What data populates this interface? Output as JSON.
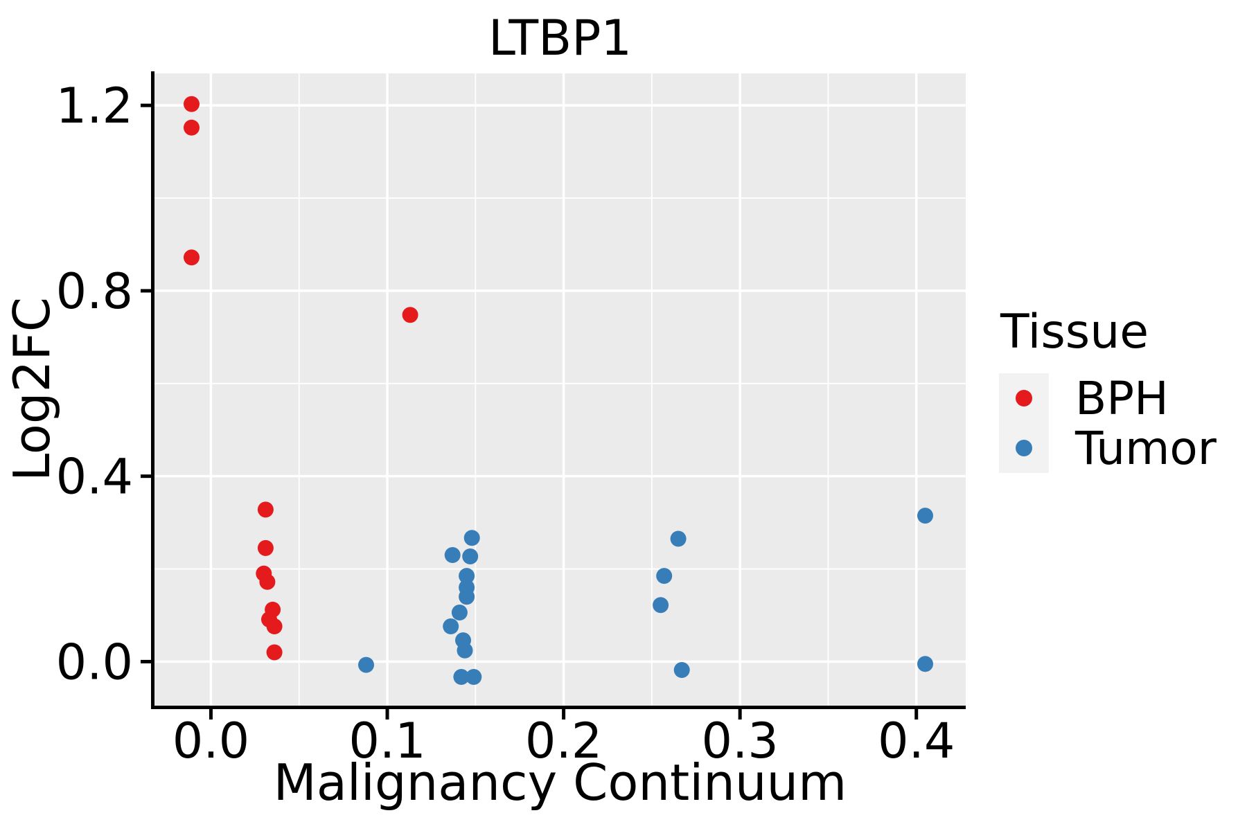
{
  "figure": {
    "title": "LTBP1",
    "legend": {
      "title": "Tissue",
      "items": [
        {
          "label": "BPH",
          "color": "#E41A1C"
        },
        {
          "label": "Tumor",
          "color": "#377EB8"
        }
      ]
    }
  },
  "chart_data": {
    "type": "scatter",
    "title": "LTBP1",
    "xlabel": "Malignancy Continuum",
    "ylabel": "Log2FC",
    "xlim": [
      -0.032,
      0.428
    ],
    "ylim": [
      -0.095,
      1.269
    ],
    "x_ticks": {
      "values": [
        0.0,
        0.1,
        0.2,
        0.3,
        0.4
      ],
      "labels": [
        "0.0",
        "0.1",
        "0.2",
        "0.3",
        "0.4"
      ]
    },
    "y_ticks": {
      "values": [
        0.0,
        0.4,
        0.8,
        1.2
      ],
      "labels": [
        "0.0",
        "0.4",
        "0.8",
        "1.2"
      ]
    },
    "x_minor_gridlines": [
      0.05,
      0.15,
      0.25,
      0.35
    ],
    "y_minor_gridlines": [
      0.2,
      0.6,
      1.0
    ],
    "grid": "on",
    "panel_background": "#EBEBEB",
    "gridline_color": "#FFFFFF",
    "axis_color": "#000000",
    "legend_position": "right",
    "series": [
      {
        "name": "BPH",
        "color": "#E41A1C",
        "points": [
          [
            -0.011,
            1.203
          ],
          [
            -0.011,
            1.152
          ],
          [
            -0.011,
            0.872
          ],
          [
            0.113,
            0.748
          ],
          [
            0.031,
            0.328
          ],
          [
            0.031,
            0.245
          ],
          [
            0.03,
            0.19
          ],
          [
            0.032,
            0.172
          ],
          [
            0.035,
            0.112
          ],
          [
            0.033,
            0.091
          ],
          [
            0.036,
            0.076
          ],
          [
            0.036,
            0.02
          ]
        ]
      },
      {
        "name": "Tumor",
        "color": "#377EB8",
        "points": [
          [
            0.088,
            -0.007
          ],
          [
            0.148,
            0.267
          ],
          [
            0.137,
            0.23
          ],
          [
            0.147,
            0.227
          ],
          [
            0.145,
            0.185
          ],
          [
            0.145,
            0.16
          ],
          [
            0.145,
            0.14
          ],
          [
            0.141,
            0.106
          ],
          [
            0.136,
            0.076
          ],
          [
            0.143,
            0.046
          ],
          [
            0.144,
            0.024
          ],
          [
            0.142,
            -0.033
          ],
          [
            0.149,
            -0.033
          ],
          [
            0.265,
            0.265
          ],
          [
            0.257,
            0.185
          ],
          [
            0.255,
            0.122
          ],
          [
            0.267,
            -0.018
          ],
          [
            0.405,
            0.315
          ],
          [
            0.405,
            -0.005
          ]
        ]
      }
    ]
  }
}
